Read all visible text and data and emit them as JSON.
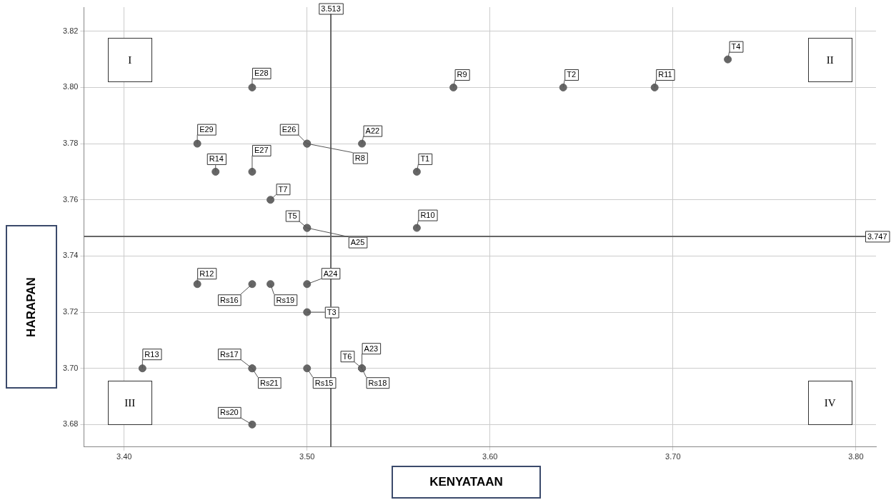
{
  "chart_data": {
    "type": "scatter",
    "xlabel": "KENYATAAN",
    "ylabel": "HARAPAN",
    "x": [
      3.47,
      3.58,
      3.64,
      3.69,
      3.73,
      3.44,
      3.5,
      3.53,
      3.5,
      3.45,
      3.47,
      3.56,
      3.48,
      3.5,
      3.5,
      3.56,
      3.44,
      3.47,
      3.48,
      3.5,
      3.5,
      3.41,
      3.47,
      3.47,
      3.5,
      3.53,
      3.53,
      3.53,
      3.47
    ],
    "values": [
      3.8,
      3.8,
      3.8,
      3.8,
      3.81,
      3.78,
      3.78,
      3.78,
      3.78,
      3.77,
      3.77,
      3.77,
      3.76,
      3.75,
      3.75,
      3.75,
      3.73,
      3.73,
      3.73,
      3.73,
      3.72,
      3.7,
      3.7,
      3.7,
      3.7,
      3.7,
      3.7,
      3.7,
      3.68
    ],
    "value_labels": [
      "E28",
      "R9",
      "T2",
      "R11",
      "T4",
      "E29",
      "E26",
      "A22",
      "R8",
      "R14",
      "E27",
      "T1",
      "T7",
      "T5",
      "A25",
      "R10",
      "R12",
      "Rs16",
      "Rs19",
      "A24",
      "T3",
      "R13",
      "Rs17",
      "Rs21",
      "Rs15",
      "T6",
      "A23",
      "Rs18",
      "Rs20"
    ],
    "color": "#666666",
    "marker": "circle",
    "xlim": [
      3.378,
      3.811
    ],
    "xticks": [
      {
        "value": 3.4,
        "label": "3.40"
      },
      {
        "value": 3.5,
        "label": "3.50"
      },
      {
        "value": 3.6,
        "label": "3.60"
      },
      {
        "value": 3.7,
        "label": "3.70"
      },
      {
        "value": 3.8,
        "label": "3.80"
      }
    ],
    "ylim": [
      3.672,
      3.8286
    ],
    "yticks": [
      {
        "value": 3.68,
        "label": "3.68"
      },
      {
        "value": 3.7,
        "label": "3.70"
      },
      {
        "value": 3.72,
        "label": "3.72"
      },
      {
        "value": 3.74,
        "label": "3.74"
      },
      {
        "value": 3.76,
        "label": "3.76"
      },
      {
        "value": 3.78,
        "label": "3.78"
      },
      {
        "value": 3.8,
        "label": "3.80"
      },
      {
        "value": 3.82,
        "label": "3.82"
      }
    ],
    "grid": true,
    "ref_lines": [
      {
        "axis": "x",
        "value": 3.513,
        "label": "3.513",
        "color": "#666666"
      },
      {
        "axis": "y",
        "value": 3.747,
        "label": "3.747",
        "color": "#666666"
      }
    ],
    "annotations": [
      "I",
      "II",
      "III",
      "IV"
    ]
  }
}
